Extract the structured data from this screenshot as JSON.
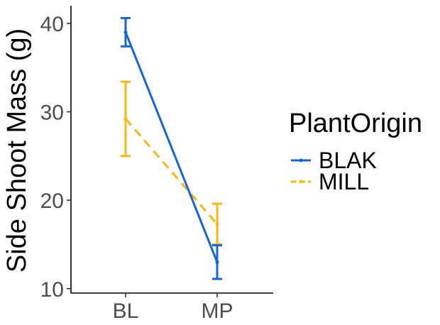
{
  "chart_data": {
    "type": "line",
    "title": "",
    "xlabel": "",
    "ylabel": "Side Shoot Mass (g)",
    "categories": [
      "BL",
      "MP"
    ],
    "ylim": [
      9.5,
      42
    ],
    "yticks": [
      10,
      20,
      30,
      40
    ],
    "grid": false,
    "legend": {
      "title": "PlantOrigin",
      "placement": "right"
    },
    "series": [
      {
        "name": "BLAK",
        "color": "#1565d8",
        "linestyle": "solid",
        "values": [
          39.0,
          13.0
        ],
        "error_low": [
          37.4,
          11.1
        ],
        "error_high": [
          40.6,
          14.9
        ]
      },
      {
        "name": "MILL",
        "color": "#fbb612",
        "linestyle": "dashed",
        "values": [
          29.2,
          17.3
        ],
        "error_low": [
          25.0,
          15.0
        ],
        "error_high": [
          33.4,
          19.6
        ]
      }
    ]
  }
}
